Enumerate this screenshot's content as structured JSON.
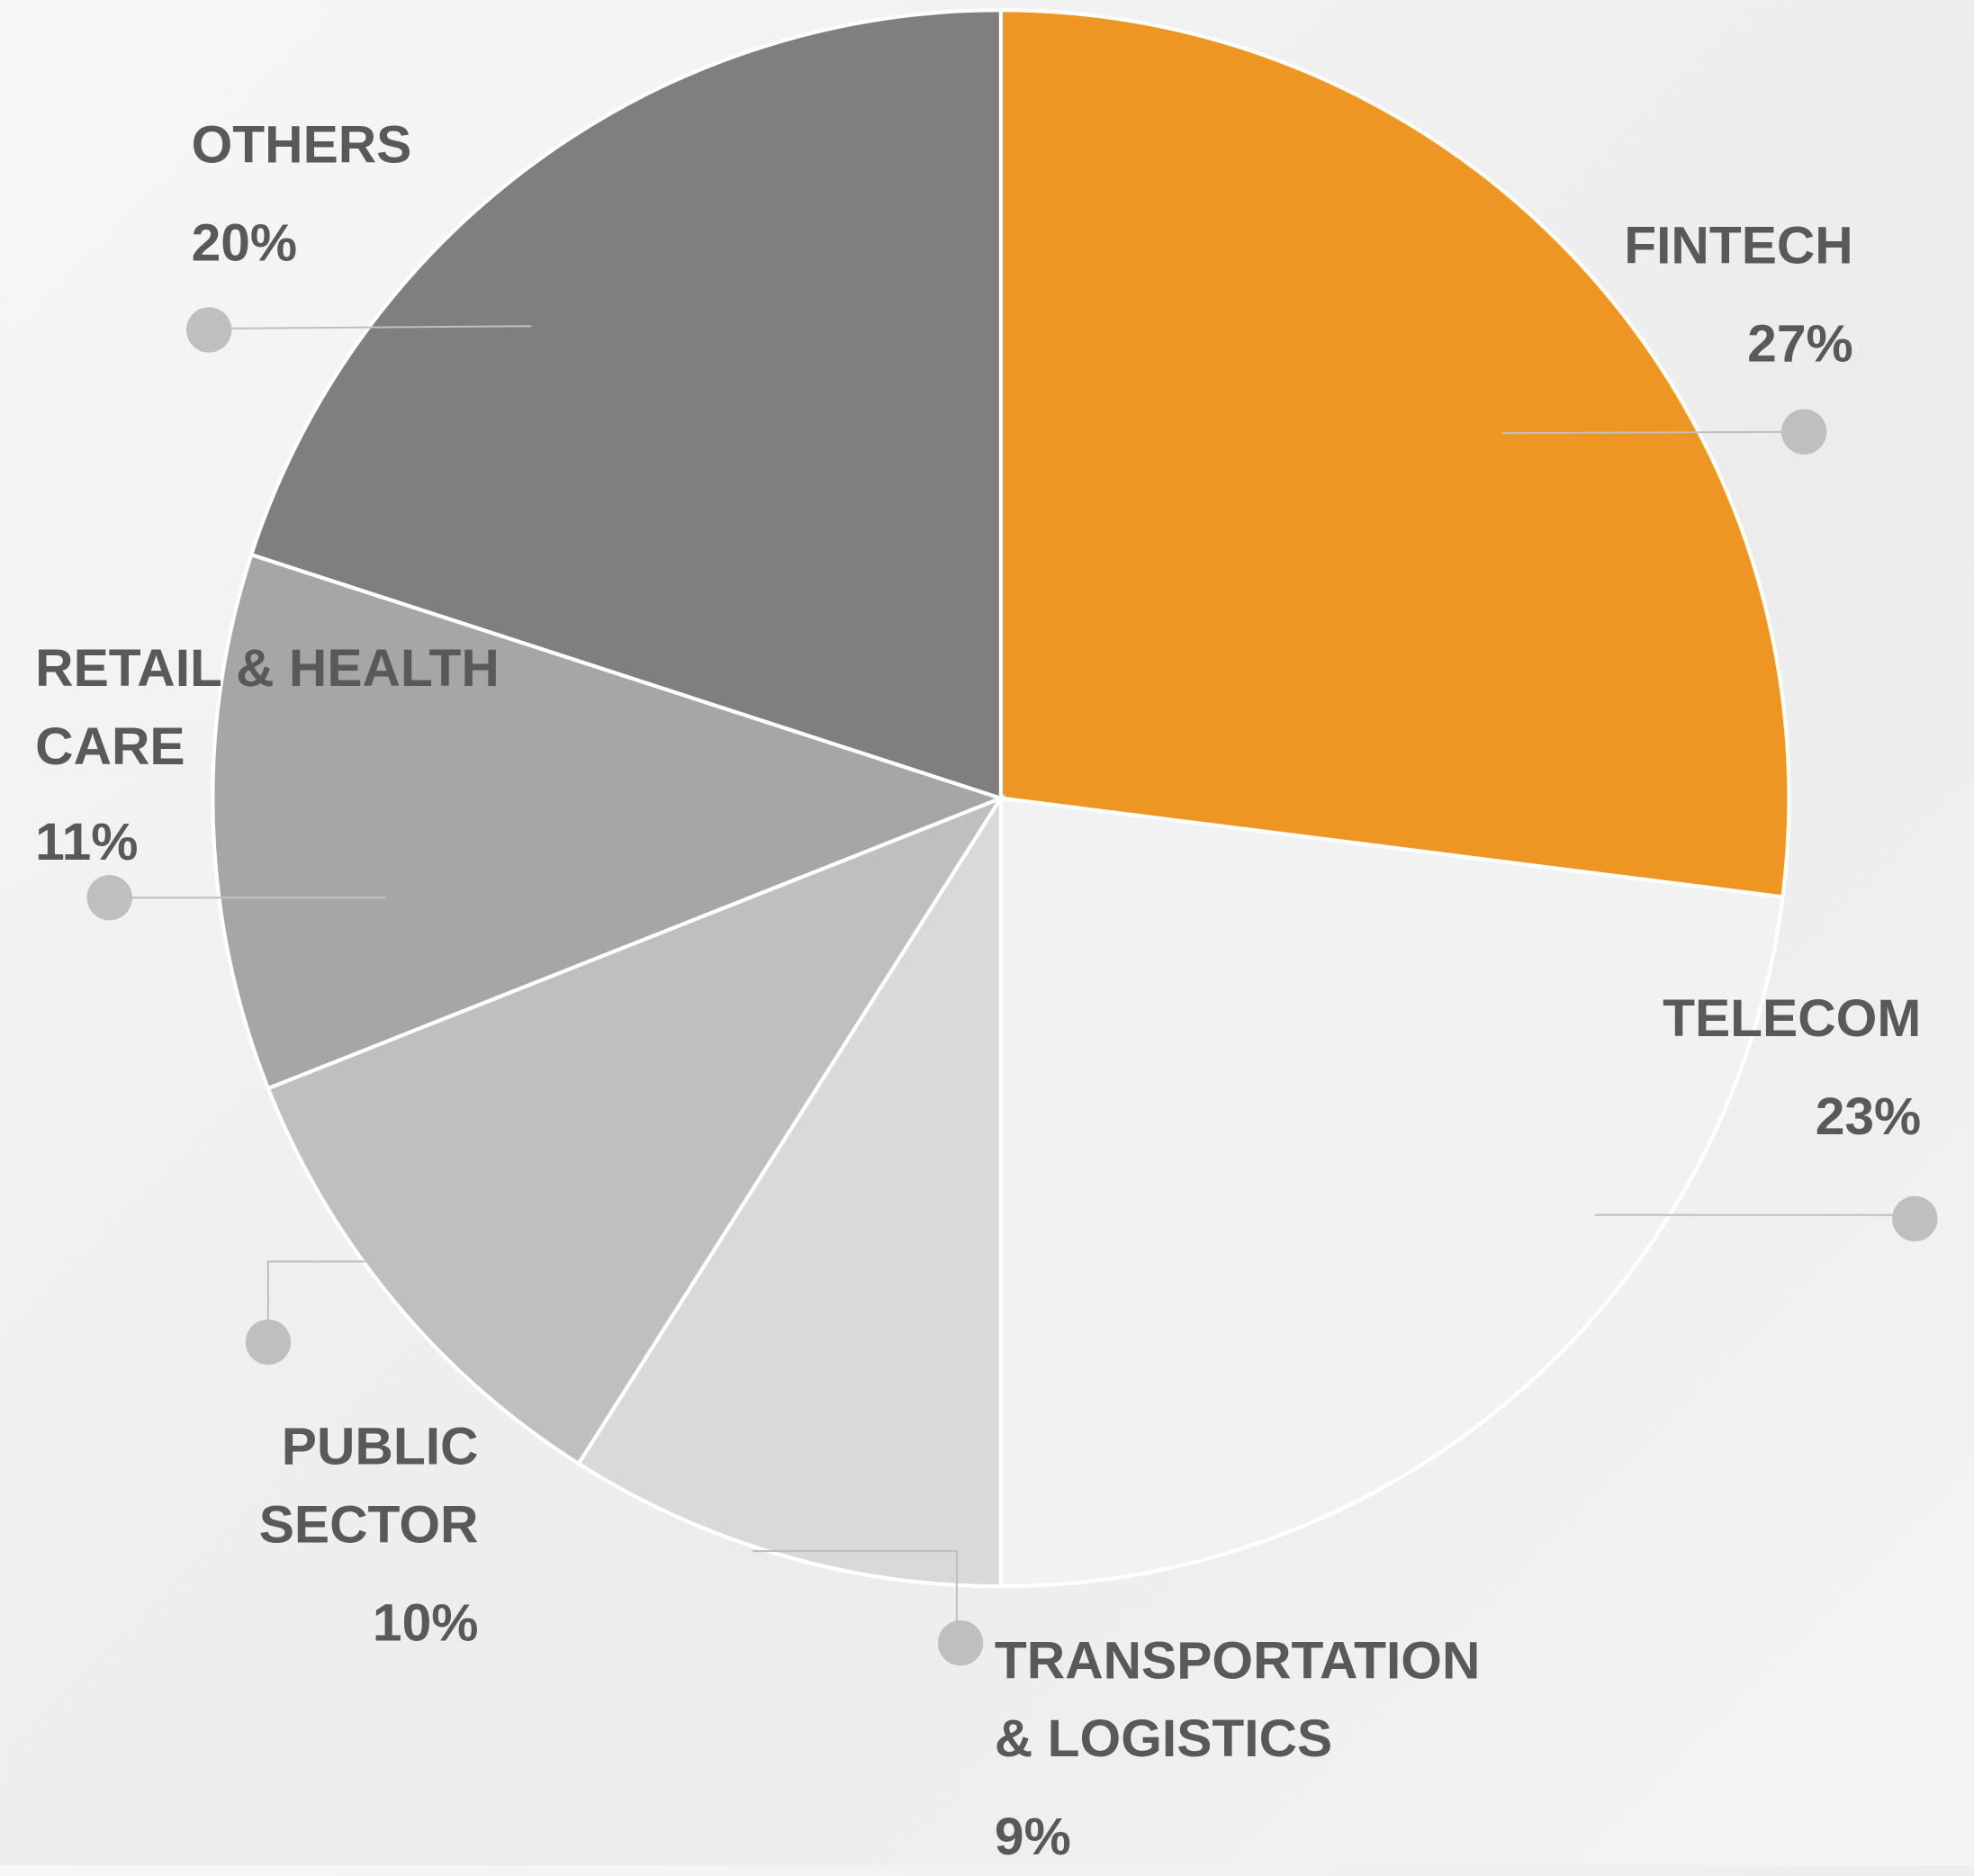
{
  "chart_data": {
    "type": "pie",
    "categories": [
      "FINTECH",
      "TELECOM",
      "TRANSPORTATION & LOGISTICS",
      "PUBLIC SECTOR",
      "RETAIL & HEALTH CARE",
      "OTHERS"
    ],
    "values": [
      27,
      23,
      9,
      10,
      11,
      20
    ],
    "value_labels": [
      "27%",
      "23%",
      "9%",
      "10%",
      "11%",
      "20%"
    ],
    "colors": [
      "#ee9624",
      "#f2f2f2",
      "#d9d9d9",
      "#bfbfbf",
      "#a6a6a6",
      "#7f7f7f"
    ]
  }
}
